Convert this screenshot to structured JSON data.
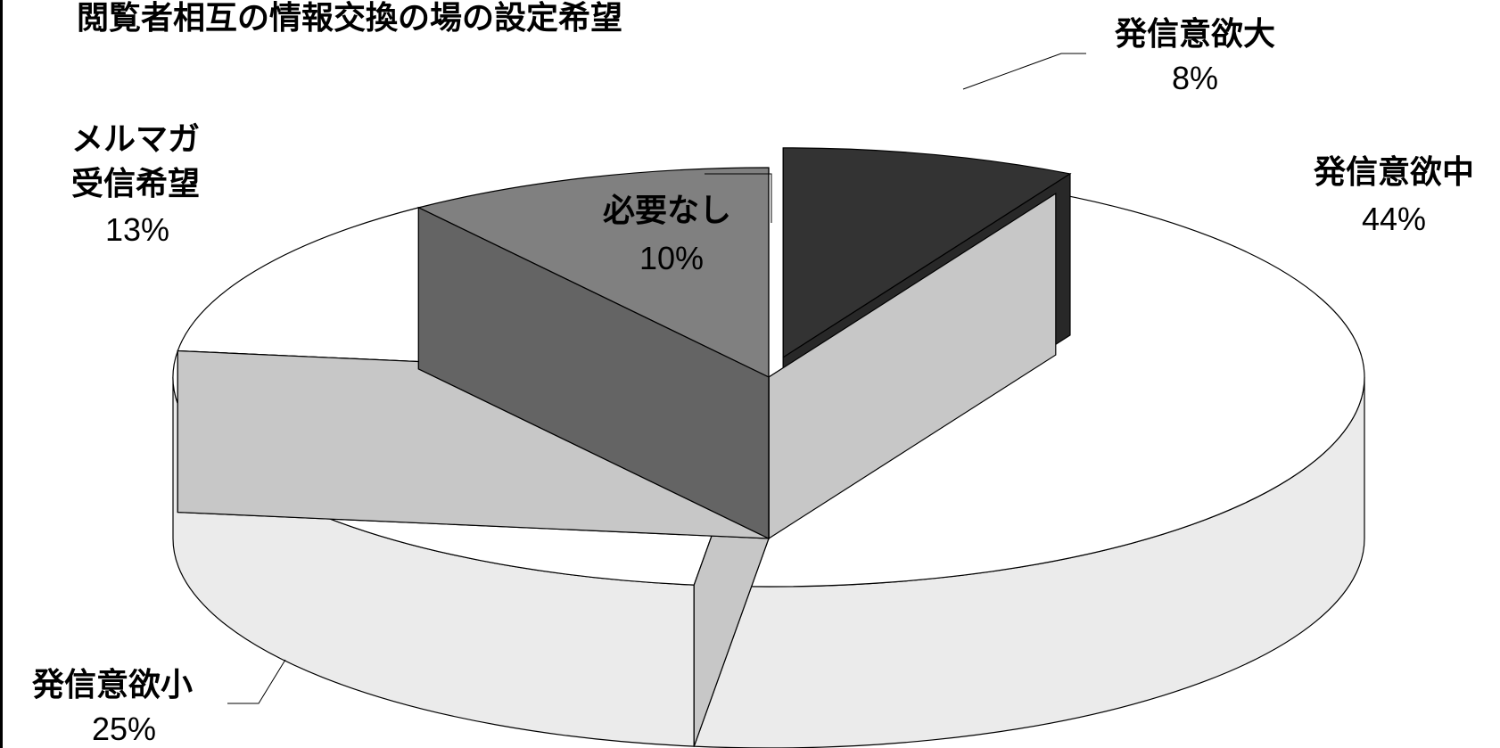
{
  "chart_data": {
    "type": "pie",
    "title": "閲覧者相互の情報交換の場の設定希望",
    "slices": [
      {
        "name": "発信意欲大",
        "label_lines": [
          "発信意欲大"
        ],
        "percent_label": "8%",
        "value": 8,
        "color": "#333333",
        "exploded": true
      },
      {
        "name": "発信意欲中",
        "label_lines": [
          "発信意欲中"
        ],
        "percent_label": "44%",
        "value": 44,
        "color": "#ffffff",
        "exploded": false
      },
      {
        "name": "発信意欲小",
        "label_lines": [
          "発信意欲小"
        ],
        "percent_label": "25%",
        "value": 25,
        "color": "#ffffff",
        "exploded": false
      },
      {
        "name": "メルマガ受信希望",
        "label_lines": [
          "メルマガ",
          "受信希望"
        ],
        "percent_label": "13%",
        "value": 13,
        "color": "#ffffff",
        "exploded": false
      },
      {
        "name": "必要なし",
        "label_lines": [
          "必要なし"
        ],
        "percent_label": "10%",
        "value": 10,
        "color": "#808080",
        "exploded": false
      }
    ],
    "style": "3d-pie",
    "legend": "none"
  }
}
